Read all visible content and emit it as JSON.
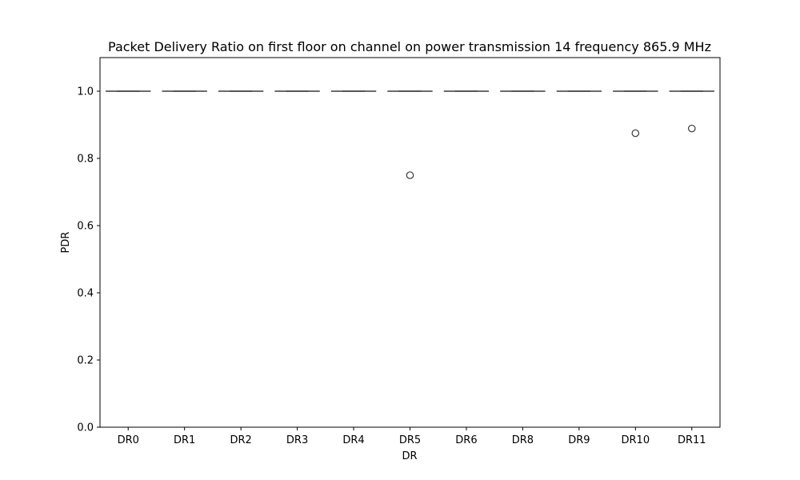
{
  "chart_data": {
    "type": "box",
    "title": "Packet Delivery Ratio on first floor on channel on power transmission 14 frequency 865.9 MHz",
    "xlabel": "DR",
    "ylabel": "PDR",
    "ylim": [
      0,
      1.1
    ],
    "yticks": [
      0.0,
      0.2,
      0.4,
      0.6,
      0.8,
      1.0
    ],
    "ytick_labels": [
      "0.0",
      "0.2",
      "0.4",
      "0.6",
      "0.8",
      "1.0"
    ],
    "categories": [
      "DR0",
      "DR1",
      "DR2",
      "DR3",
      "DR4",
      "DR5",
      "DR6",
      "DR8",
      "DR9",
      "DR10",
      "DR11"
    ],
    "boxes": [
      {
        "q1": 1.0,
        "median": 1.0,
        "q3": 1.0,
        "whisker_low": 1.0,
        "whisker_high": 1.0,
        "outliers": []
      },
      {
        "q1": 1.0,
        "median": 1.0,
        "q3": 1.0,
        "whisker_low": 1.0,
        "whisker_high": 1.0,
        "outliers": []
      },
      {
        "q1": 1.0,
        "median": 1.0,
        "q3": 1.0,
        "whisker_low": 1.0,
        "whisker_high": 1.0,
        "outliers": []
      },
      {
        "q1": 1.0,
        "median": 1.0,
        "q3": 1.0,
        "whisker_low": 1.0,
        "whisker_high": 1.0,
        "outliers": []
      },
      {
        "q1": 1.0,
        "median": 1.0,
        "q3": 1.0,
        "whisker_low": 1.0,
        "whisker_high": 1.0,
        "outliers": []
      },
      {
        "q1": 1.0,
        "median": 1.0,
        "q3": 1.0,
        "whisker_low": 1.0,
        "whisker_high": 1.0,
        "outliers": [
          0.75
        ]
      },
      {
        "q1": 1.0,
        "median": 1.0,
        "q3": 1.0,
        "whisker_low": 1.0,
        "whisker_high": 1.0,
        "outliers": []
      },
      {
        "q1": 1.0,
        "median": 1.0,
        "q3": 1.0,
        "whisker_low": 1.0,
        "whisker_high": 1.0,
        "outliers": []
      },
      {
        "q1": 1.0,
        "median": 1.0,
        "q3": 1.0,
        "whisker_low": 1.0,
        "whisker_high": 1.0,
        "outliers": []
      },
      {
        "q1": 1.0,
        "median": 1.0,
        "q3": 1.0,
        "whisker_low": 1.0,
        "whisker_high": 1.0,
        "outliers": [
          0.875
        ]
      },
      {
        "q1": 1.0,
        "median": 1.0,
        "q3": 1.0,
        "whisker_low": 1.0,
        "whisker_high": 1.0,
        "outliers": [
          0.889
        ]
      }
    ],
    "grid": false,
    "colors": {
      "box": "#3a3a3a",
      "axis": "#000000",
      "background": "#ffffff"
    }
  }
}
